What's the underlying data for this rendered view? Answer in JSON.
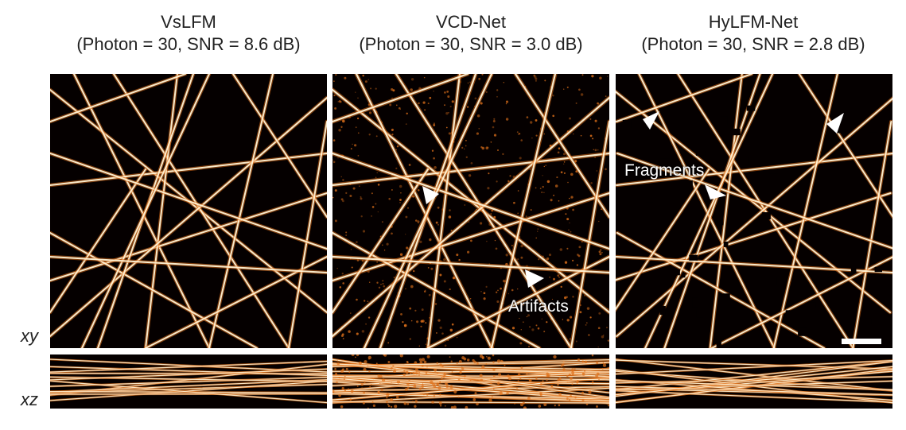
{
  "columns": [
    {
      "method": "VsLFM",
      "condition": "(Photon = 30, SNR = 8.6 dB)"
    },
    {
      "method": "VCD-Net",
      "condition": "(Photon = 30, SNR = 3.0 dB)"
    },
    {
      "method": "HyLFM-Net",
      "condition": "(Photon = 30, SNR = 2.8 dB)"
    }
  ],
  "row_labels": {
    "xy": "xy",
    "xz": "xz"
  },
  "annotations": {
    "artifacts": "Artifacts",
    "fragments": "Fragments"
  },
  "colors": {
    "background": "#050000",
    "filament_core": "#fff3d6",
    "filament_glow": "#e0701a",
    "arrow": "#ffffff"
  }
}
